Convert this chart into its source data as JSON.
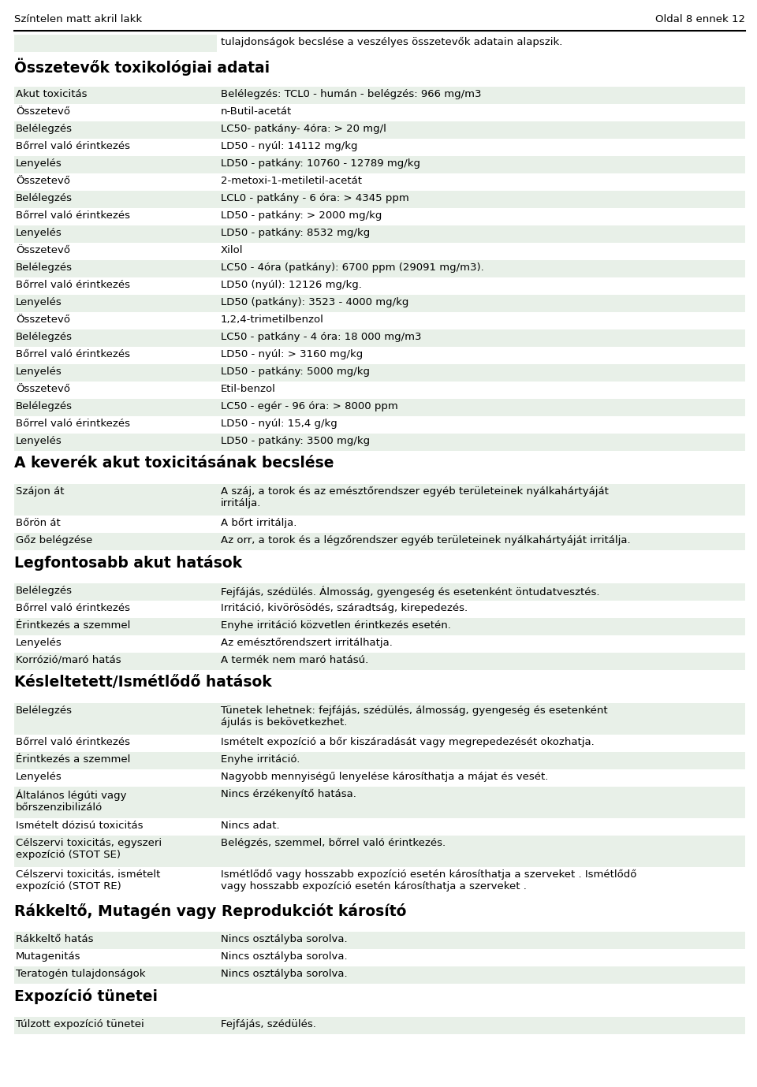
{
  "header_left": "Színtelen matt akril lakk",
  "header_right": "Oldal 8 ennek 12",
  "bg_color": "#ffffff",
  "cell_bg_even": "#e8f0e8",
  "cell_bg_odd": "#ffffff",
  "text_color": "#000000",
  "intro_text": "tulajdonságok becslése a veszélyes összetevők adatain alapszik.",
  "sections": [
    {
      "type": "section_header",
      "text": "Összetevők toxikológiai adatai"
    },
    {
      "type": "row",
      "col1": "Akut toxicitás",
      "col2": "Belélegzés: TCL0 - humán - belégzés: 966 mg/m3"
    },
    {
      "type": "row",
      "col1": "Összetevő",
      "col2": "n-Butil-acetát"
    },
    {
      "type": "row",
      "col1": "Belélegzés",
      "col2": "LC50- patkány- 4óra: > 20 mg/l"
    },
    {
      "type": "row",
      "col1": "Bőrrel való érintkezés",
      "col2": "LD50 - nyúl: 14112 mg/kg"
    },
    {
      "type": "row",
      "col1": "Lenyelés",
      "col2": "LD50 - patkány: 10760 - 12789 mg/kg"
    },
    {
      "type": "row",
      "col1": "Összetevő",
      "col2": "2-metoxi-1-metiletil-acetát"
    },
    {
      "type": "row",
      "col1": "Belélegzés",
      "col2": "LCL0 - patkány - 6 óra: > 4345 ppm"
    },
    {
      "type": "row",
      "col1": "Bőrrel való érintkezés",
      "col2": "LD50 - patkány: > 2000 mg/kg"
    },
    {
      "type": "row",
      "col1": "Lenyelés",
      "col2": "LD50 - patkány: 8532 mg/kg"
    },
    {
      "type": "row",
      "col1": "Összetevő",
      "col2": "Xilol"
    },
    {
      "type": "row",
      "col1": "Belélegzés",
      "col2": "LC50 - 4óra (patkány): 6700 ppm (29091 mg/m3)."
    },
    {
      "type": "row",
      "col1": "Bőrrel való érintkezés",
      "col2": "LD50 (nyúl): 12126 mg/kg."
    },
    {
      "type": "row",
      "col1": "Lenyelés",
      "col2": "LD50 (patkány): 3523 - 4000 mg/kg"
    },
    {
      "type": "row",
      "col1": "Összetevő",
      "col2": "1,2,4-trimetilbenzol"
    },
    {
      "type": "row",
      "col1": "Belélegzés",
      "col2": "LC50 - patkány - 4 óra: 18 000 mg/m3"
    },
    {
      "type": "row",
      "col1": "Bőrrel való érintkezés",
      "col2": "LD50 - nyúl: > 3160 mg/kg"
    },
    {
      "type": "row",
      "col1": "Lenyelés",
      "col2": "LD50 - patkány: 5000 mg/kg"
    },
    {
      "type": "row",
      "col1": "Összetevő",
      "col2": "Etil-benzol"
    },
    {
      "type": "row",
      "col1": "Belélegzés",
      "col2": "LC50 - egér - 96 óra: > 8000 ppm"
    },
    {
      "type": "row",
      "col1": "Bőrrel való érintkezés",
      "col2": "LD50 - nyúl: 15,4 g/kg"
    },
    {
      "type": "row",
      "col1": "Lenyelés",
      "col2": "LD50 - patkány: 3500 mg/kg"
    },
    {
      "type": "section_header",
      "text": "A keverék akut toxicitásának becslése"
    },
    {
      "type": "row_tall",
      "col1": "Szájon át",
      "col2": "A száj, a torok és az emésztőrendszer egyéb területeinek nyálkahártyáját\nirritálja."
    },
    {
      "type": "row",
      "col1": "Bőrön át",
      "col2": "A bőrt irritálja."
    },
    {
      "type": "row",
      "col1": "Gőz belégzése",
      "col2": "Az orr, a torok és a légzőrendszer egyéb területeinek nyálkahártyáját irritálja."
    },
    {
      "type": "section_header",
      "text": "Legfontosabb akut hatások"
    },
    {
      "type": "row",
      "col1": "Belélegzés",
      "col2": "Fejfájás, szédülés. Álmosság, gyengeség és esetenként öntudatvesztés."
    },
    {
      "type": "row",
      "col1": "Bőrrel való érintkezés",
      "col2": "Irritáció, kivörösödés, száradtság, kirepedezés."
    },
    {
      "type": "row",
      "col1": "Érintkezés a szemmel",
      "col2": "Enyhe irritáció közvetlen érintkezés esetén."
    },
    {
      "type": "row",
      "col1": "Lenyelés",
      "col2": "Az emésztőrendszert irritálhatja."
    },
    {
      "type": "row",
      "col1": "Korrózió/maró hatás",
      "col2": "A termék nem maró hatású."
    },
    {
      "type": "section_header",
      "text": "Késleltetett/Ismétlődő hatások"
    },
    {
      "type": "row_tall",
      "col1": "Belélegzés",
      "col2": "Tünetek lehetnek: fejfájás, szédülés, álmosság, gyengeség és esetenként\nájulás is bekövetkezhet."
    },
    {
      "type": "row",
      "col1": "Bőrrel való érintkezés",
      "col2": "Ismételt expozíció a bőr kiszáradását vagy megrepedezését okozhatja."
    },
    {
      "type": "row",
      "col1": "Érintkezés a szemmel",
      "col2": "Enyhe irritáció."
    },
    {
      "type": "row",
      "col1": "Lenyelés",
      "col2": "Nagyobb mennyiségű lenyelése károsíthatja a májat és vesét."
    },
    {
      "type": "row_tall",
      "col1": "Általános légúti vagy\nbőrszenzibilizáló",
      "col2": "Nincs érzékenyítő hatása."
    },
    {
      "type": "row",
      "col1": "Ismételt dózisú toxicitás",
      "col2": "Nincs adat."
    },
    {
      "type": "row_tall",
      "col1": "Célszervi toxicitás, egyszeri\nexpozíció (STOT SE)",
      "col2": "Belégzés, szemmel, bőrrel való érintkezés."
    },
    {
      "type": "row_tall",
      "col1": "Célszervi toxicitás, ismételt\nexpozíció (STOT RE)",
      "col2": "Ismétlődő vagy hosszabb expozíció esetén károsíthatja a szerveket . Ismétlődő\nvagy hosszabb expozíció esetén károsíthatja a szerveket ."
    },
    {
      "type": "section_header",
      "text": "Rákkeltő, Mutagén vagy Reprodukciót károsító"
    },
    {
      "type": "row",
      "col1": "Rákkeltő hatás",
      "col2": "Nincs osztályba sorolva."
    },
    {
      "type": "row",
      "col1": "Mutagenitás",
      "col2": "Nincs osztályba sorolva."
    },
    {
      "type": "row",
      "col1": "Teratogén tulajdonságok",
      "col2": "Nincs osztályba sorolva."
    },
    {
      "type": "section_header",
      "text": "Expozíció tünetei"
    },
    {
      "type": "row",
      "col1": "Túlzott expozíció tünetei",
      "col2": "Fejfájás, szédülés."
    }
  ]
}
